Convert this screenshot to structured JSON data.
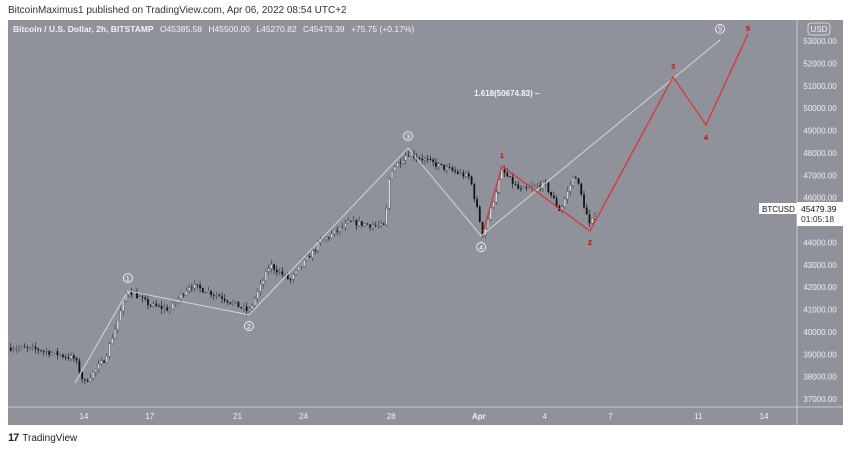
{
  "header": {
    "published": "BitcoinMaximus1 published on TradingView.com, Apr 06, 2022 08:54 UTC+2"
  },
  "legend": {
    "symbol": "Bitcoin / U.S. Dollar, 2h, BITSTAMP",
    "open": "O45385.58",
    "high": "H45500.00",
    "low": "L45270.82",
    "close": "C45479.39",
    "change": "+75.75 (+0.17%)"
  },
  "price_tag": {
    "symbol": "BTCUSD",
    "price": "45479.39",
    "countdown": "01:05:18"
  },
  "footer": {
    "brand": "TradingView",
    "logo": "17"
  },
  "colors": {
    "background": "#8f929b",
    "candle_up": "#d9dadd",
    "candle_down": "#111111",
    "wave_gray": "#d6d6d6",
    "wave_red": "#e03030",
    "label_red": "#e00000"
  },
  "chart_data": {
    "type": "candlestick",
    "title": "Bitcoin / U.S. Dollar, 2h, BITSTAMP",
    "currency": "USD",
    "ylim": [
      36900,
      53600
    ],
    "yticks": [
      "53000.00",
      "52000.00",
      "51000.00",
      "50000.00",
      "49000.00",
      "48000.00",
      "47000.00",
      "46000.00",
      "45000.00",
      "44000.00",
      "43000.00",
      "42000.00",
      "41000.00",
      "40000.00",
      "39000.00",
      "38000.00",
      "37000.00"
    ],
    "xtick_note": "x in days since Mar 14, 2022",
    "xticks": [
      {
        "t": 0,
        "label": "14"
      },
      {
        "t": 3,
        "label": "17"
      },
      {
        "t": 7,
        "label": "21"
      },
      {
        "t": 10,
        "label": "24"
      },
      {
        "t": 14,
        "label": "28"
      },
      {
        "t": 18,
        "label": "Apr"
      },
      {
        "t": 21,
        "label": "4"
      },
      {
        "t": 24,
        "label": "7"
      },
      {
        "t": 28,
        "label": "11"
      },
      {
        "t": 31,
        "label": "14"
      }
    ],
    "xlim": [
      -3.46,
      32.5
    ],
    "price_path": [
      [
        -3.46,
        39300
      ],
      [
        -2.0,
        39200
      ],
      [
        -0.41,
        38800
      ],
      [
        0,
        37700
      ],
      [
        0.96,
        38800
      ],
      [
        2.0,
        41900
      ],
      [
        3.0,
        41200
      ],
      [
        3.9,
        41000
      ],
      [
        4.83,
        42100
      ],
      [
        6.2,
        41600
      ],
      [
        7.52,
        40900
      ],
      [
        8.48,
        43000
      ],
      [
        9.39,
        42300
      ],
      [
        10.76,
        44000
      ],
      [
        12.12,
        44900
      ],
      [
        13.72,
        44700
      ],
      [
        13.95,
        47200
      ],
      [
        14.77,
        48000
      ],
      [
        16.23,
        47400
      ],
      [
        17.59,
        46900
      ],
      [
        18.19,
        44300
      ],
      [
        19.05,
        47200
      ],
      [
        19.87,
        46300
      ],
      [
        21.01,
        46600
      ],
      [
        21.7,
        45400
      ],
      [
        22.38,
        47100
      ],
      [
        23.06,
        44700
      ],
      [
        23.38,
        45479.39
      ]
    ],
    "last_price": 45479.39,
    "gray_wave_line": [
      [
        -0.41,
        37715
      ],
      [
        2.0,
        41830
      ],
      [
        7.52,
        40760
      ],
      [
        14.77,
        48220
      ],
      [
        18.1,
        44290
      ],
      [
        28.99,
        53045
      ]
    ],
    "gray_wave_labels": [
      {
        "t": 2.0,
        "p": 42400,
        "label": "1"
      },
      {
        "t": 7.52,
        "p": 40260,
        "label": "2"
      },
      {
        "t": 14.77,
        "p": 48750,
        "label": "3"
      },
      {
        "t": 18.1,
        "p": 43790,
        "label": "4"
      },
      {
        "t": 28.99,
        "p": 53540,
        "label": "5"
      }
    ],
    "red_wave_line": [
      [
        18.19,
        44460
      ],
      [
        19.05,
        47410
      ],
      [
        23.06,
        44510
      ],
      [
        26.85,
        51390
      ],
      [
        28.35,
        49250
      ],
      [
        30.26,
        53310
      ]
    ],
    "red_wave_labels": [
      {
        "t": 19.05,
        "p": 47900,
        "label": "1"
      },
      {
        "t": 23.06,
        "p": 44020,
        "label": "2"
      },
      {
        "t": 26.85,
        "p": 51880,
        "label": "3"
      },
      {
        "t": 28.35,
        "p": 48710,
        "label": "4"
      },
      {
        "t": 30.26,
        "p": 53580,
        "label": "5"
      }
    ],
    "fib_annotation": {
      "t": 17.78,
      "p": 50674.83,
      "label": "1.618(50674.83) –"
    }
  }
}
